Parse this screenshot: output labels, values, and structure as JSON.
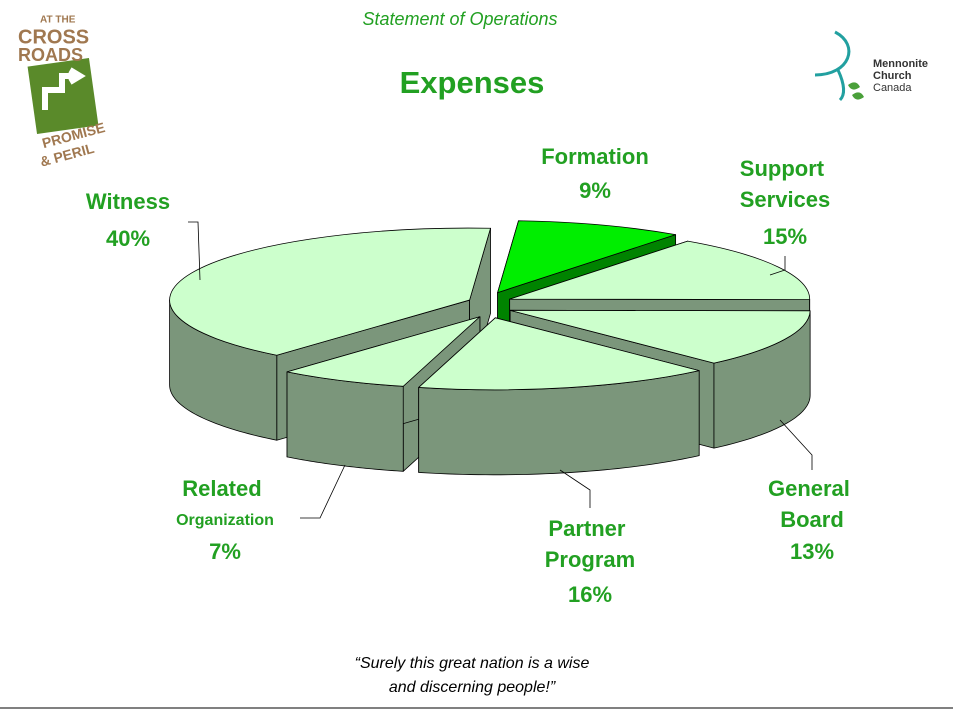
{
  "header": "Statement of Operations",
  "logo_left": [
    "AT THE",
    "CROSS",
    "ROADS",
    "PROMISE",
    "& PERIL"
  ],
  "logo_right": [
    "Mennonite",
    "Church",
    "Canada"
  ],
  "chart_data": {
    "type": "pie",
    "title": "Expenses",
    "categories": [
      "Formation",
      "Support Services",
      "General Board",
      "Partner Program",
      "Related Organization",
      "Witness"
    ],
    "values": [
      9,
      15,
      13,
      16,
      7,
      40
    ],
    "value_labels": [
      "9%",
      "15%",
      "13%",
      "16%",
      "7%",
      "40%"
    ],
    "colors": [
      "#00ee00",
      "#ccffcc",
      "#ccffcc",
      "#ccffcc",
      "#ccffcc",
      "#ccffcc"
    ],
    "exploded": true,
    "three_d": true
  },
  "quote": [
    "“Surely this great nation is a wise",
    "and discerning people!”"
  ]
}
